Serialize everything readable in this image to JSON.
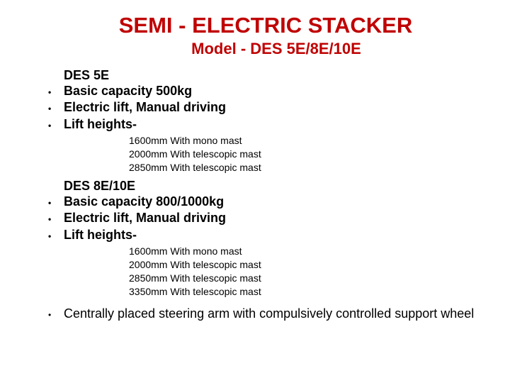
{
  "title": "SEMI - ELECTRIC STACKER",
  "subtitle": "Model - DES 5E/8E/10E",
  "colors": {
    "title_color": "#c00000",
    "text_color": "#000000",
    "background": "#ffffff"
  },
  "section1": {
    "heading": "DES 5E",
    "bullets": [
      "Basic capacity 500kg",
      "Electric lift, Manual driving",
      "Lift heights-"
    ],
    "sub_items": [
      "1600mm With mono mast",
      "2000mm With telescopic mast",
      "2850mm With telescopic mast"
    ]
  },
  "section2": {
    "heading": "DES 8E/10E",
    "bullets": [
      "Basic capacity 800/1000kg",
      "Electric lift, Manual driving",
      "Lift heights-"
    ],
    "sub_items": [
      "1600mm With mono mast",
      "2000mm With telescopic mast",
      "2850mm With telescopic mast",
      "3350mm With telescopic mast"
    ]
  },
  "final_bullet": "Centrally placed steering arm with compulsively controlled support wheel"
}
